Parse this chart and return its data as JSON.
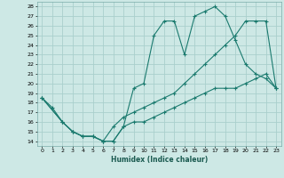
{
  "title": "",
  "xlabel": "Humidex (Indice chaleur)",
  "bg_color": "#cde8e5",
  "grid_color": "#aacfcc",
  "line_color": "#1a7a6e",
  "xlim": [
    -0.5,
    23.5
  ],
  "ylim": [
    13.5,
    28.5
  ],
  "xticks": [
    0,
    1,
    2,
    3,
    4,
    5,
    6,
    7,
    8,
    9,
    10,
    11,
    12,
    13,
    14,
    15,
    16,
    17,
    18,
    19,
    20,
    21,
    22,
    23
  ],
  "yticks": [
    14,
    15,
    16,
    17,
    18,
    19,
    20,
    21,
    22,
    23,
    24,
    25,
    26,
    27,
    28
  ],
  "line1_x": [
    0,
    1,
    2,
    3,
    4,
    5,
    6,
    7,
    8,
    9,
    10,
    11,
    12,
    13,
    14,
    15,
    16,
    17,
    18,
    19,
    20,
    21,
    22,
    23
  ],
  "line1_y": [
    18.5,
    17.5,
    16.0,
    15.0,
    14.5,
    14.5,
    14.0,
    14.0,
    15.5,
    19.5,
    20.0,
    25.0,
    26.5,
    26.5,
    23.0,
    27.0,
    27.5,
    28.0,
    27.0,
    24.5,
    22.0,
    21.0,
    20.5,
    19.5
  ],
  "line2_x": [
    0,
    2,
    3,
    4,
    5,
    6,
    7,
    8,
    9,
    10,
    11,
    12,
    13,
    14,
    15,
    16,
    17,
    18,
    19,
    20,
    21,
    22,
    23
  ],
  "line2_y": [
    18.5,
    16.0,
    15.0,
    14.5,
    14.5,
    14.0,
    15.5,
    16.5,
    17.0,
    17.5,
    18.0,
    18.5,
    19.0,
    20.0,
    21.0,
    22.0,
    23.0,
    24.0,
    25.0,
    26.5,
    26.5,
    26.5,
    19.5
  ],
  "line3_x": [
    0,
    2,
    3,
    4,
    5,
    6,
    7,
    8,
    9,
    10,
    11,
    12,
    13,
    14,
    15,
    16,
    17,
    18,
    19,
    20,
    21,
    22,
    23
  ],
  "line3_y": [
    18.5,
    16.0,
    15.0,
    14.5,
    14.5,
    14.0,
    14.0,
    15.5,
    16.0,
    16.0,
    16.5,
    17.0,
    17.5,
    18.0,
    18.5,
    19.0,
    19.5,
    19.5,
    19.5,
    20.0,
    20.5,
    21.0,
    19.5
  ]
}
